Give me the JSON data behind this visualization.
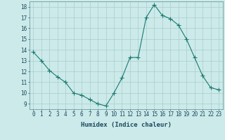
{
  "x": [
    0,
    1,
    2,
    3,
    4,
    5,
    6,
    7,
    8,
    9,
    10,
    11,
    12,
    13,
    14,
    15,
    16,
    17,
    18,
    19,
    20,
    21,
    22,
    23
  ],
  "y": [
    13.8,
    13.0,
    12.1,
    11.5,
    11.0,
    10.0,
    9.8,
    9.4,
    9.0,
    8.8,
    10.0,
    11.4,
    13.3,
    13.3,
    17.0,
    18.2,
    17.2,
    16.9,
    16.3,
    15.0,
    13.3,
    11.6,
    10.5,
    10.3
  ],
  "line_color": "#1a7a6e",
  "marker": "+",
  "marker_size": 4,
  "bg_color": "#cceaea",
  "grid_color": "#aacccc",
  "xlabel": "Humidex (Indice chaleur)",
  "xlim": [
    -0.5,
    23.5
  ],
  "ylim": [
    8.5,
    18.5
  ],
  "yticks": [
    9,
    10,
    11,
    12,
    13,
    14,
    15,
    16,
    17,
    18
  ],
  "xticks": [
    0,
    1,
    2,
    3,
    4,
    5,
    6,
    7,
    8,
    9,
    10,
    11,
    12,
    13,
    14,
    15,
    16,
    17,
    18,
    19,
    20,
    21,
    22,
    23
  ],
  "tick_fontsize": 5.5,
  "label_fontsize": 6.5
}
